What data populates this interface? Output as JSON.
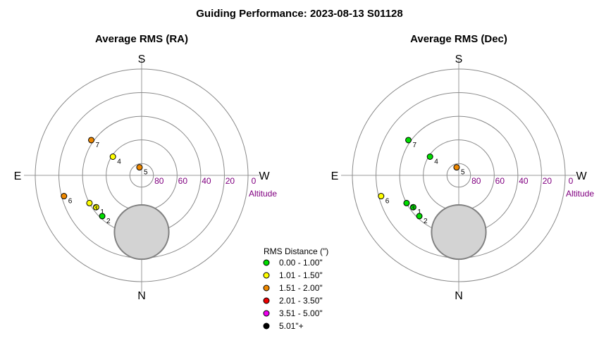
{
  "figure_title": "Guiding Performance: 2023-08-13 S01128",
  "colors": {
    "ring": "#8a8a8a",
    "axis": "#9a9a9a",
    "altitude_text": "#800080",
    "obstruction_fill": "#d3d3d3",
    "obstruction_stroke": "#808080"
  },
  "chart_data": [
    {
      "type": "scatter",
      "projection": "polar-sky",
      "title": "Average RMS (RA)",
      "directions": {
        "top": "S",
        "bottom": "N",
        "left": "E",
        "right": "W"
      },
      "altitude_label": "Altitude",
      "altitude_ticks": [
        "80",
        "60",
        "40",
        "20",
        "0"
      ],
      "rings_altitude": [
        80,
        60,
        40,
        20,
        0
      ],
      "obstruction": {
        "center_altitude": 42,
        "direction": "N",
        "radius_deg": 23
      },
      "points": [
        {
          "label": "1",
          "azimuth": 305,
          "altitude": 43,
          "rms_class": "1.01 - 1.50\""
        },
        {
          "label": "2",
          "azimuth": 316,
          "altitude": 42,
          "rms_class": "0.00 - 1.00\""
        },
        {
          "label": "3",
          "azimuth": 298,
          "altitude": 40,
          "rms_class": "1.01 - 1.50\""
        },
        {
          "label": "4",
          "azimuth": 237,
          "altitude": 61,
          "rms_class": "1.01 - 1.50\""
        },
        {
          "label": "5",
          "azimuth": 195,
          "altitude": 83,
          "rms_class": "1.51 - 2.00\""
        },
        {
          "label": "6",
          "azimuth": 285,
          "altitude": 22,
          "rms_class": "1.51 - 2.00\""
        },
        {
          "label": "7",
          "azimuth": 235,
          "altitude": 38,
          "rms_class": "1.51 - 2.00\""
        }
      ]
    },
    {
      "type": "scatter",
      "projection": "polar-sky",
      "title": "Average RMS (Dec)",
      "directions": {
        "top": "S",
        "bottom": "N",
        "left": "E",
        "right": "W"
      },
      "altitude_label": "Altitude",
      "altitude_ticks": [
        "80",
        "60",
        "40",
        "20",
        "0"
      ],
      "rings_altitude": [
        80,
        60,
        40,
        20,
        0
      ],
      "obstruction": {
        "center_altitude": 42,
        "direction": "N",
        "radius_deg": 23
      },
      "points": [
        {
          "label": "1",
          "azimuth": 305,
          "altitude": 43,
          "rms_class": "0.00 - 1.00\""
        },
        {
          "label": "2",
          "azimuth": 316,
          "altitude": 42,
          "rms_class": "0.00 - 1.00\""
        },
        {
          "label": "3",
          "azimuth": 298,
          "altitude": 40,
          "rms_class": "0.00 - 1.00\""
        },
        {
          "label": "4",
          "azimuth": 237,
          "altitude": 61,
          "rms_class": "0.00 - 1.00\""
        },
        {
          "label": "5",
          "azimuth": 195,
          "altitude": 83,
          "rms_class": "1.51 - 2.00\""
        },
        {
          "label": "6",
          "azimuth": 285,
          "altitude": 22,
          "rms_class": "1.01 - 1.50\""
        },
        {
          "label": "7",
          "azimuth": 235,
          "altitude": 38,
          "rms_class": "0.00 - 1.00\""
        }
      ]
    }
  ],
  "legend": {
    "title": "RMS Distance (\")",
    "items": [
      {
        "label": "0.00 - 1.00\"",
        "color": "#00dd00"
      },
      {
        "label": "1.01 - 1.50\"",
        "color": "#ffff00"
      },
      {
        "label": "1.51 - 2.00\"",
        "color": "#ee8800"
      },
      {
        "label": "2.01 - 3.50\"",
        "color": "#ee0000"
      },
      {
        "label": "3.51 - 5.00\"",
        "color": "#ee00ee"
      },
      {
        "label": "5.01\"+",
        "color": "#000000"
      }
    ]
  }
}
